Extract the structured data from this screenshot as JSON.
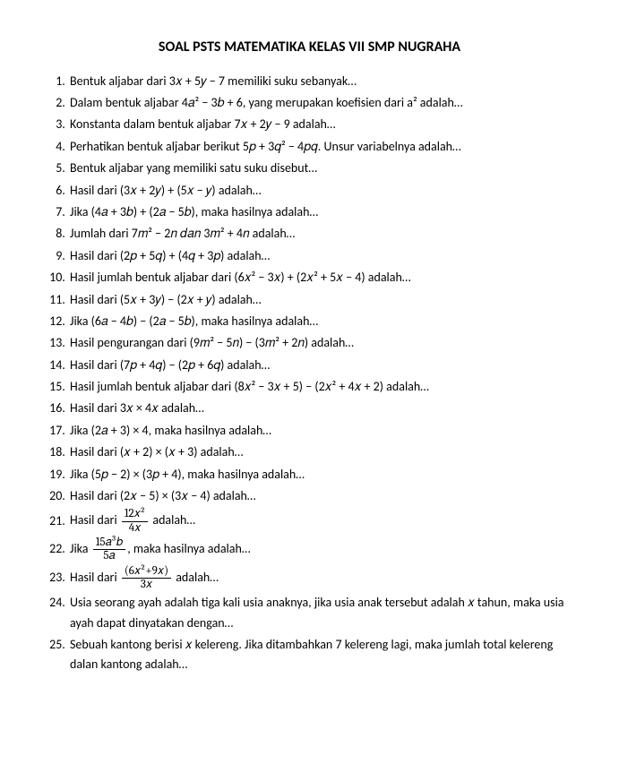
{
  "title": "SOAL PSTS MATEMATIKA KELAS VII SMP NUGRAHA",
  "items": [
    "Bentuk aljabar dari 3𝑥 + 5𝑦 − 7 memiliki suku sebanyak…",
    "Dalam bentuk aljabar 4𝑎² − 3𝑏 + 6, yang merupakan koefisien dari a² adalah…",
    "Konstanta dalam bentuk aljabar 7𝑥 + 2𝑦 − 9 adalah…",
    "Perhatikan bentuk aljabar berikut 5𝑝 + 3𝑞² − 4𝑝𝑞. Unsur variabelnya adalah…",
    "Bentuk aljabar yang memiliki satu suku disebut…",
    "Hasil dari (3𝑥 + 2𝑦) + (5𝑥 − 𝑦) adalah…",
    "Jika (4𝑎 + 3𝑏) + (2𝑎 − 5𝑏), maka hasilnya adalah…",
    "Jumlah dari 7𝑚² − 2𝑛 𝑑𝑎𝑛 3𝑚² + 4𝑛 adalah…",
    "Hasil dari (2𝑝 + 5𝑞) + (4𝑞 + 3𝑝) adalah…",
    "Hasil jumlah bentuk aljabar dari (6𝑥² − 3𝑥) + (2𝑥² + 5𝑥 − 4) adalah…",
    "Hasil dari (5𝑥 + 3𝑦) − (2𝑥 + 𝑦) adalah…",
    "Jika (6𝑎 − 4𝑏) − (2𝑎 − 5𝑏), maka hasilnya adalah…",
    "Hasil pengurangan dari (9𝑚² − 5𝑛) − (3𝑚² + 2𝑛) adalah…",
    "Hasil dari (7𝑝 + 4𝑞) − (2𝑝 + 6𝑞) adalah…",
    "Hasil jumlah bentuk aljabar dari (8𝑥² − 3𝑥 + 5) − (2𝑥² + 4𝑥 + 2) adalah…",
    "Hasil dari 3𝑥 × 4𝑥 adalah…",
    "Jika (2𝑎 + 3) × 4, maka hasilnya adalah…",
    "Hasil dari (𝑥 + 2) × (𝑥 + 3) adalah…",
    "Jika (5𝑝 − 2) × (3𝑝 + 4), maka hasilnya adalah…",
    "Hasil dari (2𝑥 − 5) × (3𝑥 − 4) adalah…",
    "",
    "",
    "",
    "Usia seorang ayah adalah tiga kali usia anaknya, jika usia anak tersebut adalah 𝑥 tahun, maka usia ayah dapat dinyatakan dengan…",
    "Sebuah kantong berisi 𝑥 kelereng. Jika ditambahkan 7 kelereng lagi, maka jumlah total kelereng dalan kantong adalah…"
  ],
  "frac21": {
    "prefix": "Hasil dari ",
    "num": "12𝑥²",
    "den": "4𝑥",
    "suffix": " adalah…"
  },
  "frac22": {
    "prefix": "Jika ",
    "num": "15𝑎³𝑏",
    "den": "5𝑎",
    "suffix": ", maka hasilnya adalah…"
  },
  "frac23": {
    "prefix": "Hasil dari ",
    "num": "(6𝑥²+9𝑥)",
    "den": "3𝑥",
    "suffix": " adalah…"
  }
}
